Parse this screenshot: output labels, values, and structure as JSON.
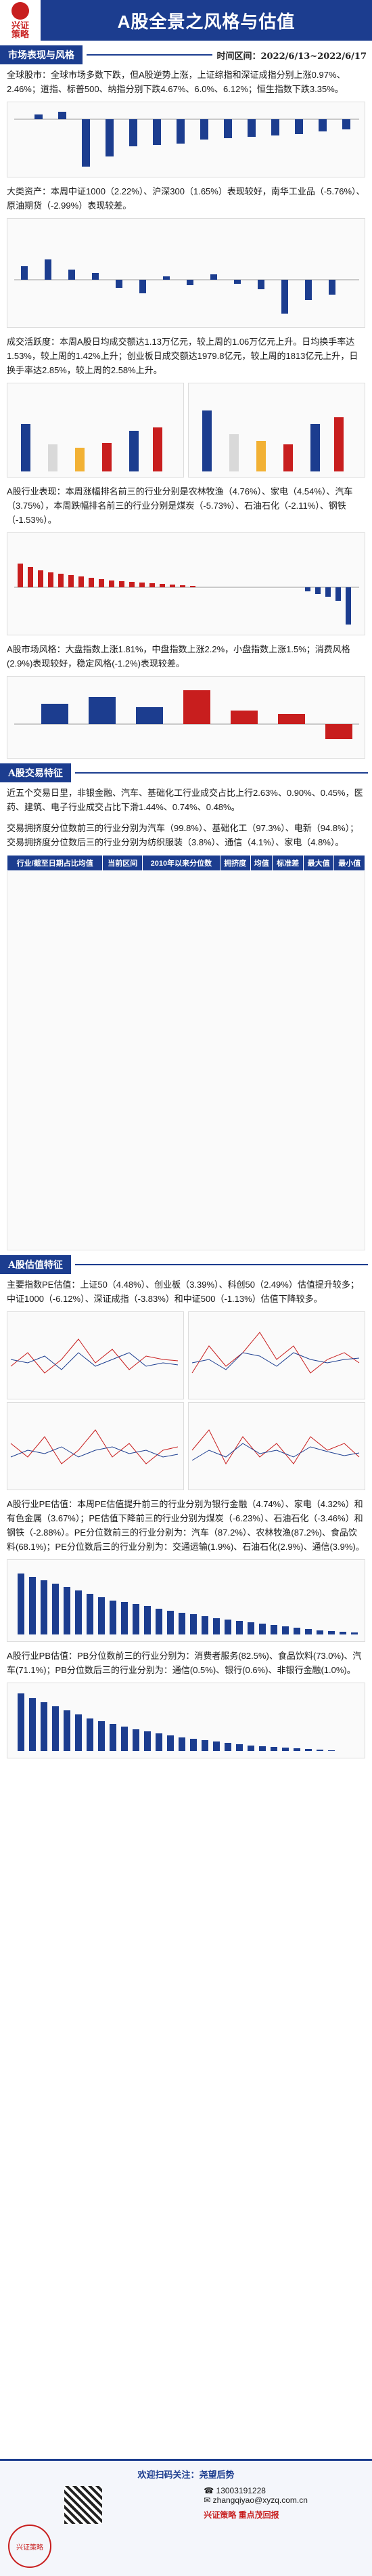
{
  "header": {
    "logo_text": "兴证\n策略",
    "title": "A股全景之风格与估值"
  },
  "section1": {
    "title": "市场表现与风格",
    "time_label": "时间区间：2022/6/13~2022/6/17",
    "para1": "全球股市：全球市场多数下跌，但A股逆势上涨，上证综指和深证成指分别上涨0.97%、2.46%；道指、标普500、纳指分别下跌4.67%、6.0%、6.12%；恒生指数下跌3.35%。",
    "para2": "大类资产：本周中证1000（2.22%）、沪深300（1.65%）表现较好，南华工业品（-5.76%）、原油期货（-2.99%）表现较差。",
    "para3": "成交活跃度：本周A股日均成交额达1.13万亿元，较上周的1.06万亿元上升。日均换手率达1.53%，较上周的1.42%上升；创业板日成交额达1979.8亿元，较上周的1813亿元上升，日换手率达2.85%，较上周的2.58%上升。",
    "para4": "A股行业表现：本周涨幅排名前三的行业分别是农林牧渔（4.76%）、家电（4.54%）、汽车（3.75%），本周跌幅排名前三的行业分别是煤炭（-5.73%）、石油石化（-2.11%）、钢铁（-1.53%）。",
    "para5": "A股市场风格：大盘指数上涨1.81%，中盘指数上涨2.2%，小盘指数上涨1.5%；消费风格(2.9%)表现较好，稳定风格(-1.2%)表现较差。"
  },
  "section2": {
    "title": "A股交易特征",
    "para1": "近五个交易日里，非银金融、汽车、基础化工行业成交占比上行2.63%、0.90%、0.45%，医药、建筑、电子行业成交占比下滑1.44%、0.74%、0.48%。",
    "para2": "交易拥挤度分位数前三的行业分别为汽车（99.8%）、基础化工（97.3%）、电新（94.8%）；交易拥挤度分位数后三的行业分别为纺织服装（3.8%）、通信（4.1%）、家电（4.8%）。",
    "table_headers": [
      "行业/截至日期占比均值",
      "当前区间",
      "2010年以来分位数",
      "拥挤度",
      "均值",
      "标准差",
      "最大值",
      "最小值"
    ]
  },
  "section3": {
    "title": "A股估值特征",
    "para1": "主要指数PE估值：上证50（4.48%）、创业板（3.39%）、科创50（2.49%）估值提升较多；中证1000（-6.12%）、深证成指（-3.83%）和中证500（-1.13%）估值下降较多。",
    "para2": "A股行业PE估值：本周PE估值提升前三的行业分别为银行金融（4.74%）、家电（4.32%）和有色金属（3.67%）；PE估值下降前三的行业分别为煤炭（-6.23%）、石油石化（-3.46%）和钢铁（-2.88%）。PE分位数前三的行业分别为：汽车（87.2%）、农林牧渔(87.2%)、食品饮料(68.1%)；PE分位数后三的行业分别为：交通运输(1.9%)、石油石化(2.9%)、通信(3.9%)。",
    "para3": "A股行业PB估值：PB分位数前三的行业分别为：消费者服务(82.5%)、食品饮料(73.0%)、汽车(71.1%)；PB分位数后三的行业分别为：通信(0.5%)、银行(0.6%)、非银行金融(1.0%)。"
  },
  "footer": {
    "welcome": "欢迎扫码关注：尧望后势",
    "contact1": "☎ 13003191228",
    "contact2": "✉ zhangqiyao@xyzq.com.cn",
    "brand": "兴证策略  重点茂回报",
    "stamp": "兴证策略"
  }
}
